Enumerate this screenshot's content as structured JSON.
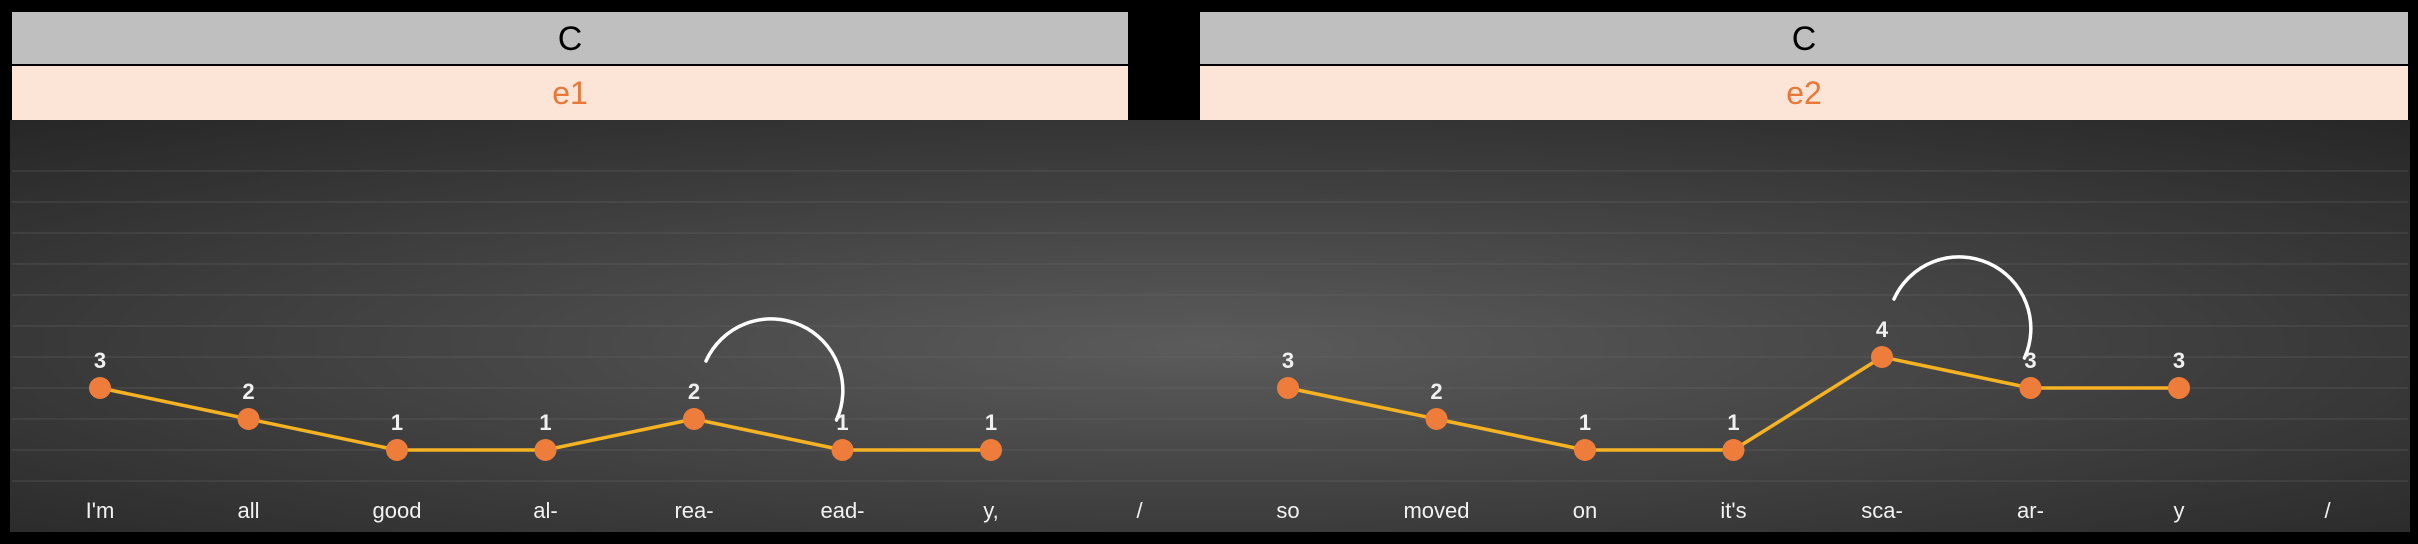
{
  "colors": {
    "background": "#000000",
    "panel_gradient_center": "#5b5b5b",
    "panel_gradient_edge": "#262626",
    "chord_bar": "#bfbfbf",
    "section_bar": "#fce4d6",
    "section_text": "#e8773a",
    "line": "#f5b324",
    "point": "#ee7d3c",
    "slur": "#ffffff"
  },
  "chart_data": {
    "type": "line",
    "measures": [
      {
        "chord": "C",
        "section": "e1",
        "lyrics": [
          "I'm",
          "all",
          "good",
          "al-",
          "rea-",
          "ead-",
          "y,",
          "/"
        ],
        "values": [
          3,
          2,
          1,
          1,
          2,
          1,
          1,
          null
        ],
        "slur_from_index": 4,
        "slur_to_index": 5
      },
      {
        "chord": "C",
        "section": "e2",
        "lyrics": [
          "so",
          "moved",
          "on",
          "it's",
          "sca-",
          "ar-",
          "y",
          "/"
        ],
        "values": [
          3,
          2,
          1,
          1,
          4,
          3,
          3,
          null
        ],
        "slur_from_index": 4,
        "slur_to_index": 5
      }
    ],
    "ylim": [
      0,
      10
    ],
    "grid": true,
    "series_line_style": "solid"
  }
}
